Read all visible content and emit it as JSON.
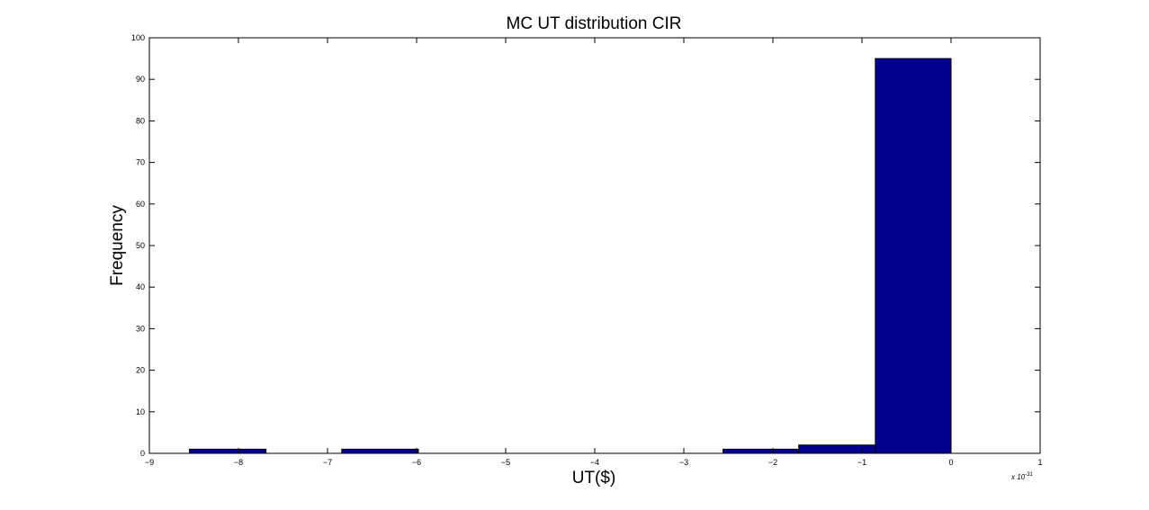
{
  "chart_data": {
    "type": "bar",
    "title": "MC UT distribution CIR",
    "xlabel": "UT($)",
    "ylabel": "Frequency",
    "x_exponent_label": "x 10",
    "x_exponent_power": "-31",
    "xlim": [
      -9,
      1
    ],
    "ylim": [
      0,
      100
    ],
    "x_ticks": [
      -9,
      -8,
      -7,
      -6,
      -5,
      -4,
      -3,
      -2,
      -1,
      0,
      1
    ],
    "y_ticks": [
      0,
      10,
      20,
      30,
      40,
      50,
      60,
      70,
      80,
      90,
      100
    ],
    "x_tick_labels": [
      "−9",
      "−8",
      "−7",
      "−6",
      "−5",
      "−4",
      "−3",
      "−2",
      "−1",
      "0",
      "1"
    ],
    "y_tick_labels": [
      "0",
      "10",
      "20",
      "30",
      "40",
      "50",
      "60",
      "70",
      "80",
      "90",
      "100"
    ],
    "bin_edges": [
      -8.55,
      -7.69,
      -6.84,
      -5.98,
      -5.13,
      -4.27,
      -3.42,
      -2.56,
      -1.71,
      -0.85,
      0
    ],
    "counts": [
      1,
      0,
      1,
      0,
      0,
      0,
      0,
      1,
      2,
      95
    ],
    "bar_color": "#00008f",
    "bar_edge_color": "#000000",
    "grid": false
  }
}
